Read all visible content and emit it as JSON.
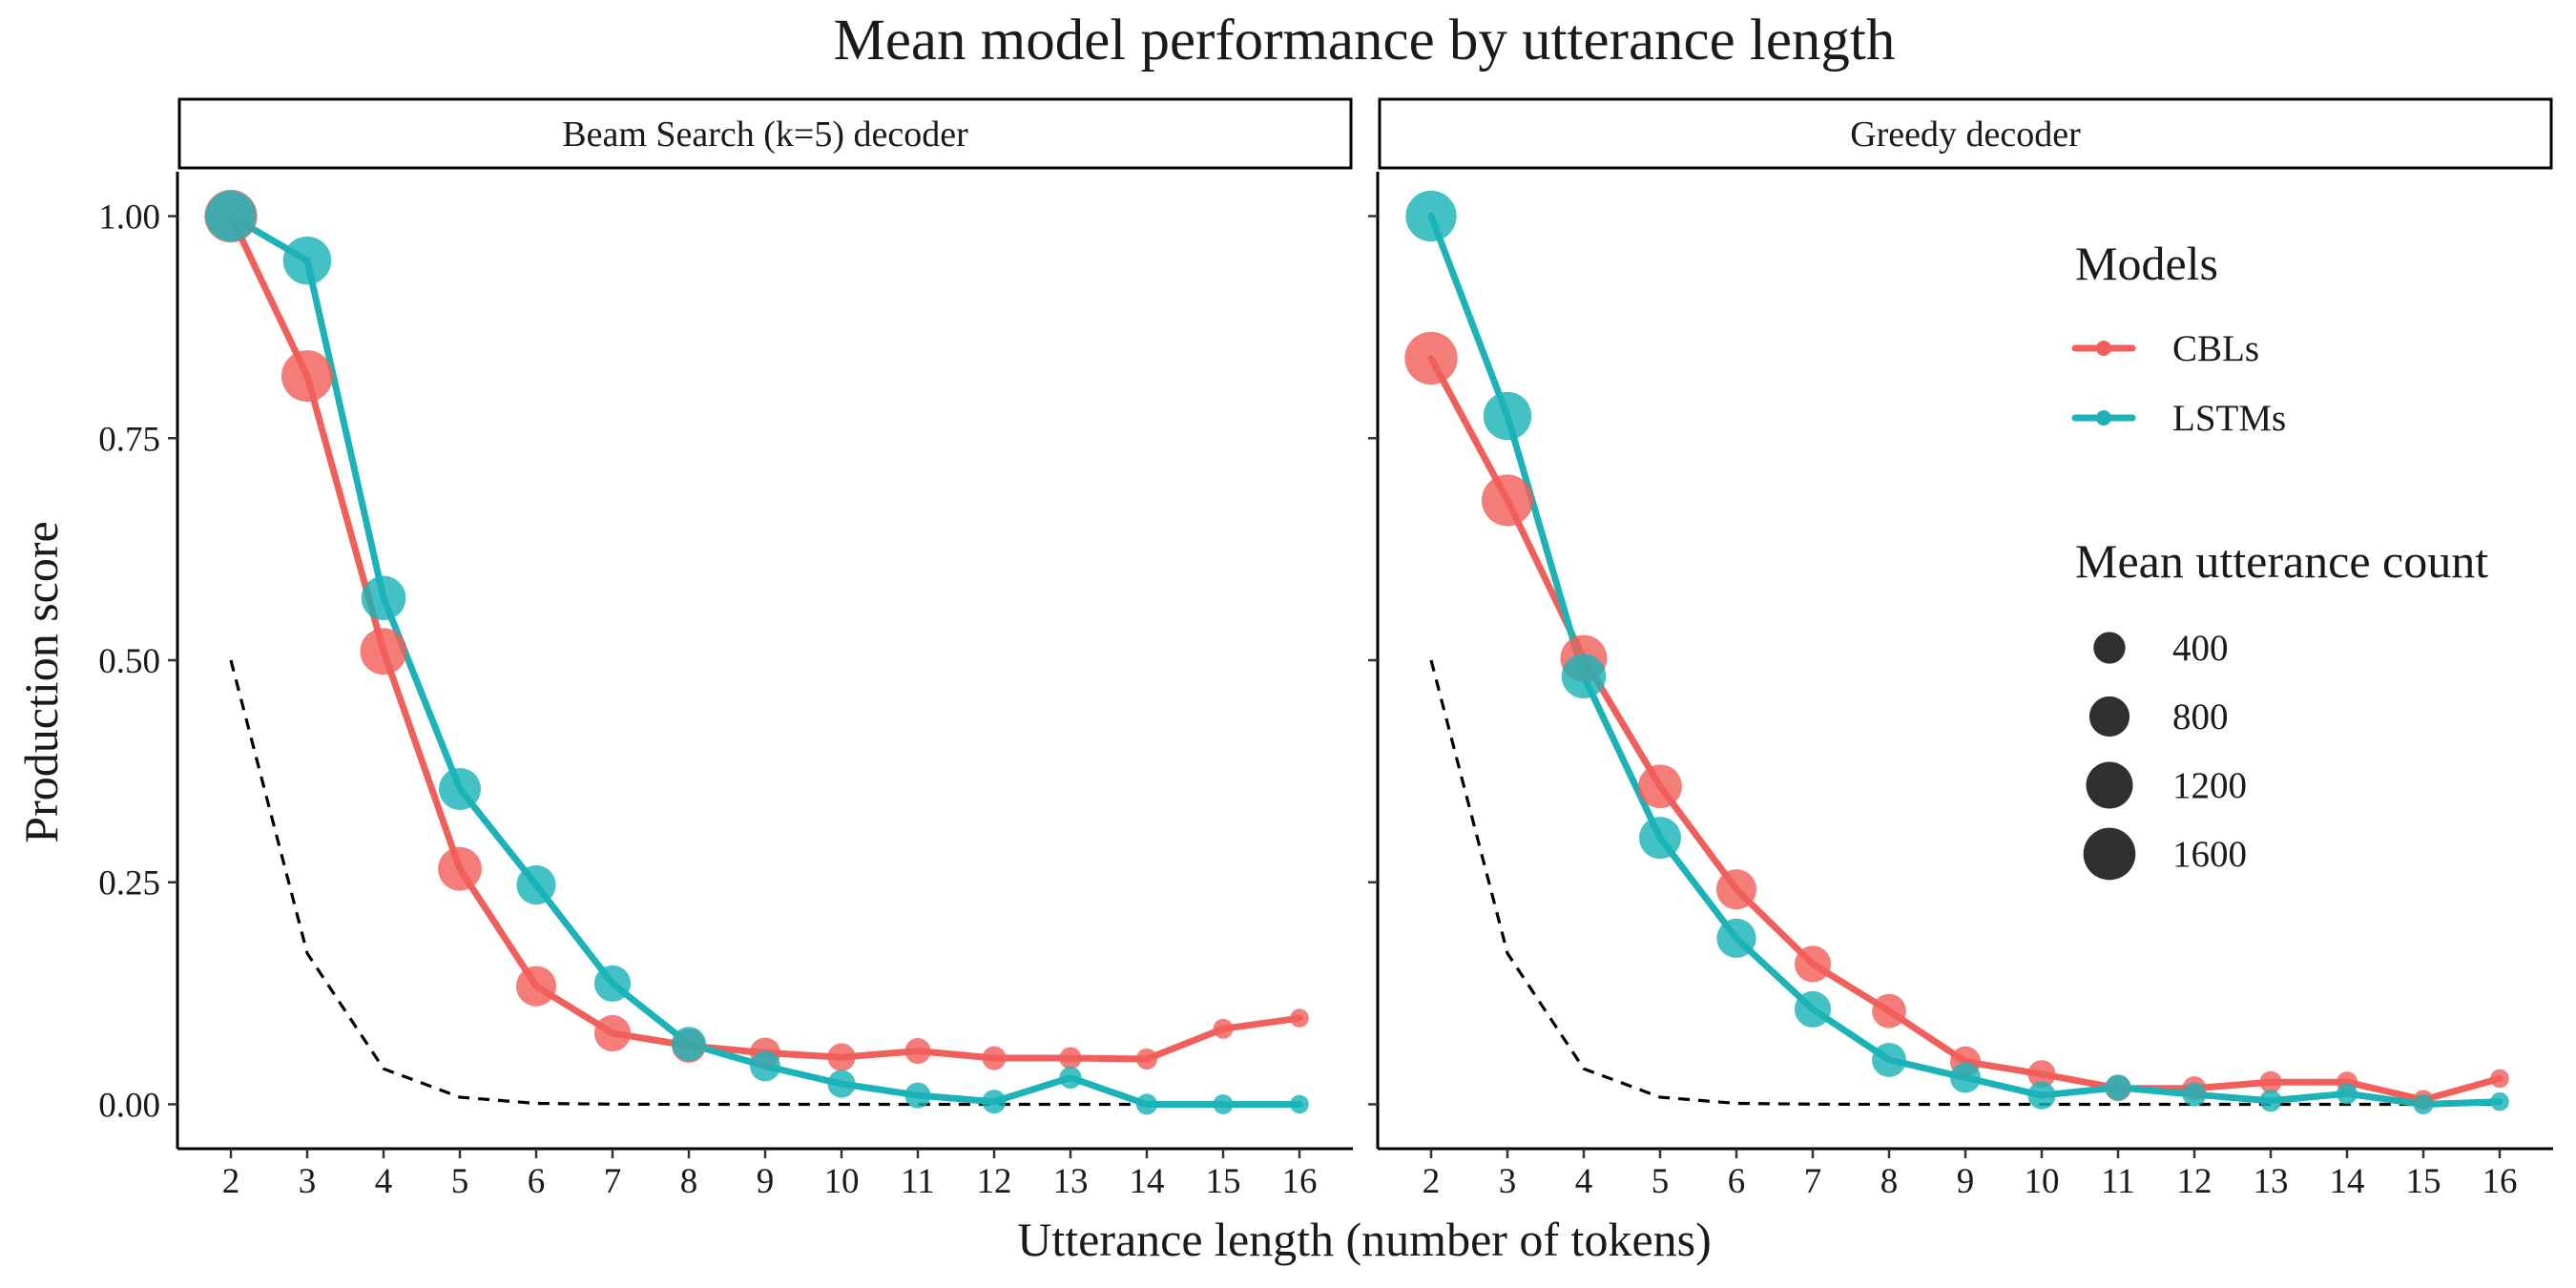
{
  "chart_data": {
    "type": "line",
    "title": "Mean model performance by utterance length",
    "xlabel": "Utterance length (number of tokens)",
    "ylabel": "Production score",
    "x": [
      2,
      3,
      4,
      5,
      6,
      7,
      8,
      9,
      10,
      11,
      12,
      13,
      14,
      15,
      16
    ],
    "xlim": [
      1.3,
      16.7
    ],
    "ylim": [
      -0.05,
      1.05
    ],
    "y_ticks": [
      0.0,
      0.25,
      0.5,
      0.75,
      1.0
    ],
    "y_tick_labels": [
      "0.00",
      "0.25",
      "0.50",
      "0.75",
      "1.00"
    ],
    "x_tick_labels": [
      "2",
      "3",
      "4",
      "5",
      "6",
      "7",
      "8",
      "9",
      "10",
      "11",
      "12",
      "13",
      "14",
      "15",
      "16"
    ],
    "grid": false,
    "colors": {
      "CBLs": "#F15F5B",
      "LSTMs": "#1BB3B7",
      "reference": "#000000"
    },
    "reference_line": {
      "style": "dashed",
      "values": [
        0.5,
        0.17,
        0.04,
        0.008,
        0.001,
        0.0002,
        0.0,
        0.0,
        0.0,
        0.0,
        0.0,
        0.0,
        0.0,
        0.0,
        0.0
      ]
    },
    "panels": [
      {
        "label": "Beam Search (k=5) decoder",
        "series": [
          {
            "name": "CBLs",
            "values": [
              1.0,
              0.82,
              0.51,
              0.265,
              0.133,
              0.08,
              0.066,
              0.058,
              0.053,
              0.06,
              0.052,
              0.052,
              0.051,
              0.085,
              0.097
            ],
            "sizes": [
              1650,
              1550,
              1200,
              1000,
              800,
              600,
              500,
              350,
              260,
              200,
              150,
              110,
              90,
              70,
              50
            ]
          },
          {
            "name": "LSTMs",
            "values": [
              1.0,
              0.95,
              0.57,
              0.355,
              0.247,
              0.136,
              0.068,
              0.043,
              0.023,
              0.01,
              0.003,
              0.03,
              0.0,
              0.0,
              0.0
            ],
            "sizes": [
              1500,
              1300,
              1050,
              900,
              750,
              600,
              500,
              350,
              260,
              200,
              150,
              110,
              90,
              70,
              50
            ]
          }
        ]
      },
      {
        "label": "Greedy decoder",
        "series": [
          {
            "name": "CBLs",
            "values": [
              0.84,
              0.68,
              0.502,
              0.358,
              0.242,
              0.158,
              0.105,
              0.048,
              0.034,
              0.018,
              0.018,
              0.025,
              0.025,
              0.005,
              0.029
            ],
            "sizes": [
              1650,
              1550,
              1200,
              1000,
              800,
              600,
              500,
              350,
              260,
              200,
              150,
              110,
              90,
              70,
              50
            ]
          },
          {
            "name": "LSTMs",
            "values": [
              1.0,
              0.775,
              0.482,
              0.3,
              0.187,
              0.107,
              0.05,
              0.03,
              0.01,
              0.019,
              0.011,
              0.004,
              0.012,
              0.0,
              0.003
            ],
            "sizes": [
              1500,
              1300,
              1050,
              900,
              750,
              600,
              500,
              350,
              260,
              200,
              150,
              110,
              90,
              70,
              50
            ]
          }
        ]
      }
    ],
    "legend": {
      "placement": "inside-right",
      "color_title": "Models",
      "color_entries": [
        "CBLs",
        "LSTMs"
      ],
      "size_title": "Mean utterance count",
      "size_entries": [
        {
          "label": "400",
          "value": 400
        },
        {
          "label": "800",
          "value": 800
        },
        {
          "label": "1200",
          "value": 1200
        },
        {
          "label": "1600",
          "value": 1600
        }
      ]
    }
  }
}
